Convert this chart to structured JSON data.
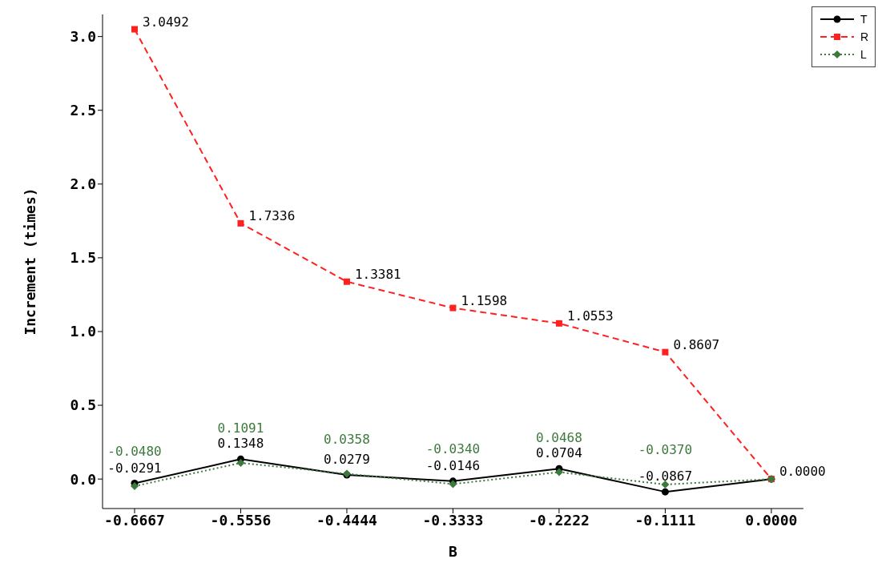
{
  "chart_data": {
    "type": "line",
    "xlabel": "B",
    "ylabel": "Increment (times)",
    "categories": [
      "-0.6667",
      "-0.5556",
      "-0.4444",
      "-0.3333",
      "-0.2222",
      "-0.1111",
      "0.0000"
    ],
    "series": [
      {
        "name": "T",
        "color": "#000000",
        "marker": "circle",
        "line_style": "solid",
        "values": [
          -0.0291,
          0.1348,
          0.0279,
          -0.0146,
          0.0704,
          -0.0867,
          0
        ],
        "value_labels": [
          "-0.0291",
          "0.1348",
          "0.0279",
          "-0.0146",
          "0.0704",
          "-0.0867",
          null
        ]
      },
      {
        "name": "R",
        "color": "#ff2020",
        "marker": "square",
        "line_style": "dashed",
        "values": [
          3.0492,
          1.7336,
          1.3381,
          1.1598,
          1.0553,
          0.8607,
          0
        ],
        "value_labels": [
          "3.0492",
          "1.7336",
          "1.3381",
          "1.1598",
          "1.0553",
          "0.8607",
          "0.0000"
        ]
      },
      {
        "name": "L",
        "color": "#3c7a3c",
        "marker": "diamond",
        "line_style": "dotted",
        "values": [
          -0.048,
          0.1091,
          0.0358,
          -0.034,
          0.0468,
          -0.037,
          0
        ],
        "value_labels": [
          "-0.0480",
          "0.1091",
          "0.0358",
          "-0.0340",
          "0.0468",
          "-0.0370",
          null
        ]
      }
    ],
    "ylim": [
      -0.2,
      3.15
    ],
    "yticks": [
      {
        "value": 0,
        "label": "0.0"
      },
      {
        "value": 0.5,
        "label": "0.5"
      },
      {
        "value": 1,
        "label": "1.0"
      },
      {
        "value": 1.5,
        "label": "1.5"
      },
      {
        "value": 2,
        "label": "2.0"
      },
      {
        "value": 2.5,
        "label": "2.5"
      },
      {
        "value": 3,
        "label": "3.0"
      }
    ],
    "grid": false,
    "legend": "top right"
  }
}
